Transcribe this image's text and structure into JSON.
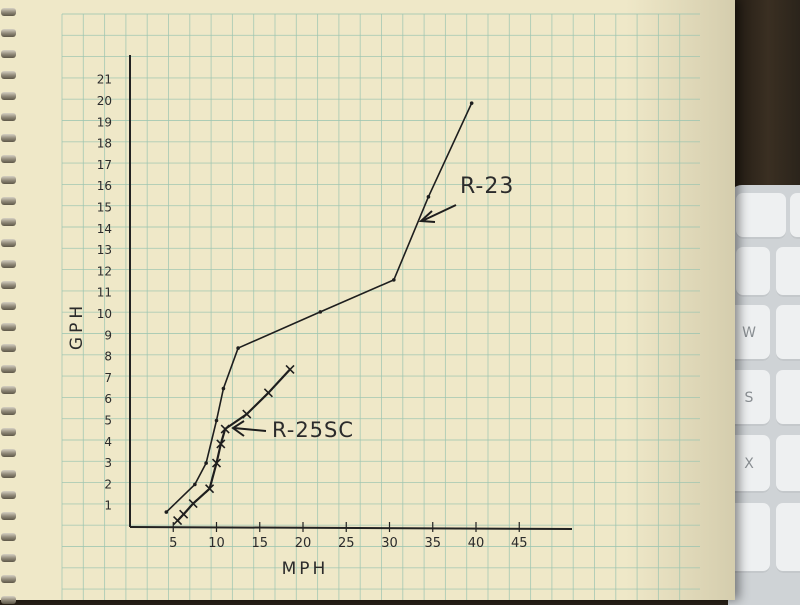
{
  "chart_data": {
    "type": "line",
    "xlabel": "MPH",
    "ylabel": "GPH",
    "x_ticks": [
      5,
      10,
      15,
      20,
      25,
      30,
      35,
      40,
      45
    ],
    "y_ticks": [
      1,
      2,
      3,
      4,
      5,
      6,
      7,
      8,
      9,
      10,
      11,
      12,
      13,
      14,
      15,
      16,
      17,
      18,
      19,
      20,
      21
    ],
    "xlim": [
      0,
      52
    ],
    "ylim": [
      0,
      21.8
    ],
    "grid": true,
    "series": [
      {
        "name": "R-23",
        "marker": "dot",
        "points": [
          [
            4.2,
            0.7
          ],
          [
            7.5,
            2.0
          ],
          [
            8.8,
            3.0
          ],
          [
            10.0,
            5.0
          ],
          [
            10.8,
            6.5
          ],
          [
            12.5,
            8.4
          ],
          [
            22.0,
            10.1
          ],
          [
            30.5,
            11.6
          ],
          [
            34.5,
            15.5
          ],
          [
            39.5,
            19.9
          ]
        ]
      },
      {
        "name": "R-25SC",
        "marker": "x",
        "points": [
          [
            5.5,
            0.3
          ],
          [
            6.2,
            0.6
          ],
          [
            7.3,
            1.1
          ],
          [
            9.2,
            1.8
          ],
          [
            10.0,
            3.0
          ],
          [
            10.5,
            3.9
          ],
          [
            11.0,
            4.6
          ],
          [
            13.5,
            5.3
          ],
          [
            16.0,
            6.3
          ],
          [
            18.5,
            7.4
          ]
        ]
      }
    ],
    "annotations": [
      {
        "text": "R-23",
        "target_series": "R-23"
      },
      {
        "text": "R-25SC",
        "target_series": "R-25SC"
      }
    ]
  }
}
